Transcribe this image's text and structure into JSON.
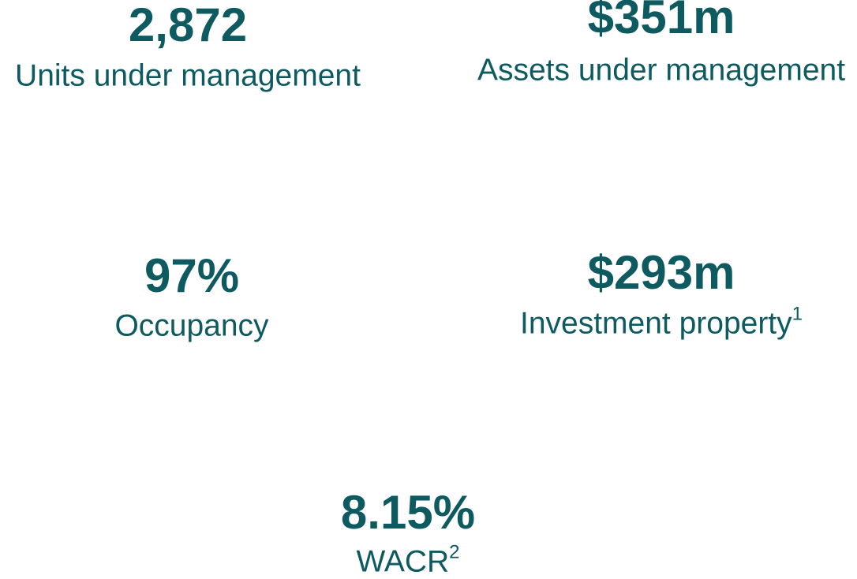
{
  "stats": [
    {
      "value": "2,872",
      "label": "Units under management"
    },
    {
      "value": "$351m",
      "label": "Assets under management"
    },
    {
      "value": "97%",
      "label": "Occupancy"
    },
    {
      "value": "$293m",
      "label": "Investment property",
      "note": "1"
    },
    {
      "value": "8.15%",
      "label": "WACR",
      "note": "2"
    }
  ]
}
